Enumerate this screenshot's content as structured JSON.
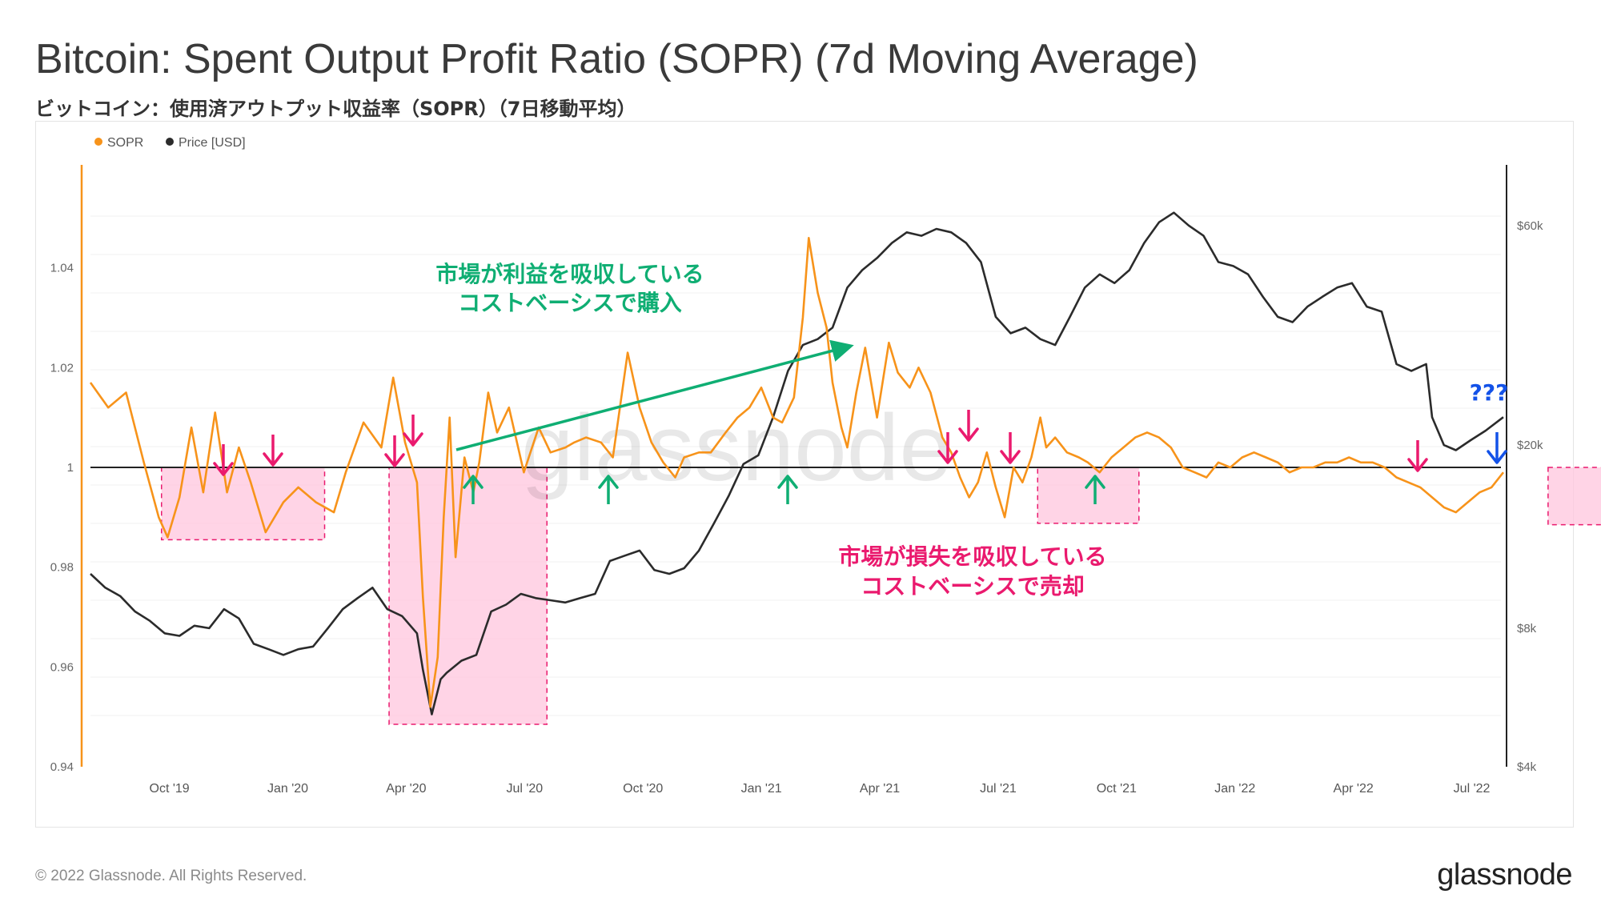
{
  "title": "Bitcoin: Spent Output Profit Ratio (SOPR) (7d Moving Average)",
  "subtitle": "ビットコイン：使用済アウトプット収益率（SOPR）（7日移動平均）",
  "footer": "© 2022 Glassnode. All Rights Reserved.",
  "brand": "glassnode",
  "watermark": "glassnode",
  "colors": {
    "sopr": "#f7931a",
    "price": "#2b2b2b",
    "green": "#0fae73",
    "pink": "#ea1a6e",
    "blue": "#1352e8",
    "shade": "#ffc6dd"
  },
  "chart_data": {
    "type": "line",
    "legend": [
      {
        "name": "SOPR",
        "color": "#f7931a"
      },
      {
        "name": "Price [USD]",
        "color": "#2b2b2b"
      }
    ],
    "x_ticks": [
      "Oct '19",
      "Jan '20",
      "Apr '20",
      "Jul '20",
      "Oct '20",
      "Jan '21",
      "Apr '21",
      "Jul '21",
      "Oct '21",
      "Jan '22",
      "Apr '22",
      "Jul '22"
    ],
    "x_range_months": [
      0,
      35.8
    ],
    "y_left": {
      "label": "SOPR",
      "range": [
        0.94,
        1.06
      ],
      "ticks": [
        "1.04",
        "1.02",
        "1",
        "0.98",
        "0.96",
        "0.94"
      ]
    },
    "y_right": {
      "label": "Price [USD]",
      "scale": "log",
      "range": [
        4000,
        80000
      ],
      "ticks": [
        {
          "label": "$60k",
          "value": 60000
        },
        {
          "label": "$20k",
          "value": 20000
        },
        {
          "label": "$8k",
          "value": 8000
        },
        {
          "label": "$4k",
          "value": 4000
        }
      ]
    },
    "baseline": 1.0,
    "series": [
      {
        "name": "SOPR",
        "axis": "left",
        "points": [
          [
            0.0,
            1.017
          ],
          [
            0.6,
            1.012
          ],
          [
            1.2,
            1.015
          ],
          [
            1.8,
            1.001
          ],
          [
            2.3,
            0.99
          ],
          [
            2.6,
            0.986
          ],
          [
            3.0,
            0.994
          ],
          [
            3.4,
            1.008
          ],
          [
            3.8,
            0.995
          ],
          [
            4.2,
            1.011
          ],
          [
            4.6,
            0.995
          ],
          [
            5.0,
            1.004
          ],
          [
            5.4,
            0.997
          ],
          [
            5.9,
            0.987
          ],
          [
            6.5,
            0.993
          ],
          [
            7.0,
            0.996
          ],
          [
            7.6,
            0.993
          ],
          [
            8.2,
            0.991
          ],
          [
            8.6,
            0.999
          ],
          [
            9.2,
            1.009
          ],
          [
            9.8,
            1.004
          ],
          [
            10.2,
            1.018
          ],
          [
            10.6,
            1.005
          ],
          [
            11.0,
            0.997
          ],
          [
            11.2,
            0.974
          ],
          [
            11.45,
            0.952
          ],
          [
            11.7,
            0.962
          ],
          [
            11.9,
            0.99
          ],
          [
            12.1,
            1.01
          ],
          [
            12.3,
            0.982
          ],
          [
            12.6,
            1.002
          ],
          [
            12.9,
            0.995
          ],
          [
            13.1,
            1.001
          ],
          [
            13.4,
            1.015
          ],
          [
            13.7,
            1.007
          ],
          [
            14.1,
            1.012
          ],
          [
            14.6,
            0.999
          ],
          [
            15.1,
            1.008
          ],
          [
            15.5,
            1.003
          ],
          [
            16.0,
            1.004
          ],
          [
            16.3,
            1.005
          ],
          [
            16.7,
            1.006
          ],
          [
            17.2,
            1.005
          ],
          [
            17.6,
            1.002
          ],
          [
            18.1,
            1.023
          ],
          [
            18.5,
            1.012
          ],
          [
            18.9,
            1.005
          ],
          [
            19.3,
            1.001
          ],
          [
            19.7,
            0.998
          ],
          [
            20.0,
            1.002
          ],
          [
            20.5,
            1.003
          ],
          [
            20.9,
            1.003
          ],
          [
            21.4,
            1.007
          ],
          [
            21.8,
            1.01
          ],
          [
            22.2,
            1.012
          ],
          [
            22.6,
            1.016
          ],
          [
            23.0,
            1.01
          ],
          [
            23.3,
            1.009
          ],
          [
            23.7,
            1.014
          ],
          [
            24.0,
            1.03
          ],
          [
            24.2,
            1.046
          ],
          [
            24.5,
            1.035
          ],
          [
            24.8,
            1.028
          ],
          [
            25.0,
            1.017
          ],
          [
            25.3,
            1.008
          ],
          [
            25.5,
            1.004
          ],
          [
            25.8,
            1.015
          ],
          [
            26.1,
            1.024
          ],
          [
            26.5,
            1.01
          ],
          [
            26.9,
            1.025
          ],
          [
            27.2,
            1.019
          ],
          [
            27.6,
            1.016
          ],
          [
            27.9,
            1.02
          ],
          [
            28.3,
            1.015
          ],
          [
            28.7,
            1.006
          ],
          [
            29.0,
            1.003
          ],
          [
            29.3,
            0.998
          ],
          [
            29.6,
            0.994
          ],
          [
            29.9,
            0.997
          ],
          [
            30.2,
            1.003
          ],
          [
            30.5,
            0.996
          ],
          [
            30.8,
            0.99
          ],
          [
            31.1,
            1.0
          ],
          [
            31.4,
            0.997
          ],
          [
            31.7,
            1.002
          ],
          [
            32.0,
            1.01
          ],
          [
            32.2,
            1.004
          ],
          [
            32.5,
            1.006
          ],
          [
            32.9,
            1.003
          ],
          [
            33.3,
            1.002
          ],
          [
            33.6,
            1.001
          ],
          [
            34.0,
            0.999
          ],
          [
            34.4,
            1.002
          ],
          [
            34.8,
            1.004
          ],
          [
            35.2,
            1.006
          ],
          [
            35.6,
            1.007
          ],
          [
            36.0,
            1.006
          ],
          [
            36.4,
            1.004
          ],
          [
            36.8,
            1.0
          ],
          [
            37.2,
            0.999
          ],
          [
            37.6,
            0.998
          ],
          [
            38.0,
            1.001
          ],
          [
            38.4,
            1.0
          ],
          [
            38.8,
            1.002
          ],
          [
            39.2,
            1.003
          ],
          [
            39.6,
            1.002
          ],
          [
            40.0,
            1.001
          ],
          [
            40.4,
            0.999
          ],
          [
            40.8,
            1.0
          ],
          [
            41.2,
            1.0
          ],
          [
            41.6,
            1.001
          ],
          [
            42.0,
            1.001
          ],
          [
            42.4,
            1.002
          ],
          [
            42.8,
            1.001
          ],
          [
            43.2,
            1.001
          ],
          [
            43.6,
            1.0
          ],
          [
            44.0,
            0.998
          ],
          [
            44.4,
            0.997
          ],
          [
            44.8,
            0.996
          ],
          [
            45.2,
            0.994
          ],
          [
            45.6,
            0.992
          ],
          [
            46.0,
            0.991
          ],
          [
            46.4,
            0.993
          ],
          [
            46.8,
            0.995
          ],
          [
            47.2,
            0.996
          ],
          [
            47.6,
            0.999
          ]
        ]
      },
      {
        "name": "Price [USD]",
        "axis": "right",
        "points": [
          [
            0.0,
            10500
          ],
          [
            0.5,
            9800
          ],
          [
            1.0,
            9400
          ],
          [
            1.5,
            8700
          ],
          [
            2.0,
            8300
          ],
          [
            2.5,
            7800
          ],
          [
            3.0,
            7700
          ],
          [
            3.5,
            8100
          ],
          [
            4.0,
            8000
          ],
          [
            4.5,
            8800
          ],
          [
            5.0,
            8400
          ],
          [
            5.5,
            7400
          ],
          [
            6.0,
            7200
          ],
          [
            6.5,
            7000
          ],
          [
            7.0,
            7200
          ],
          [
            7.5,
            7300
          ],
          [
            8.0,
            8000
          ],
          [
            8.5,
            8800
          ],
          [
            9.0,
            9300
          ],
          [
            9.5,
            9800
          ],
          [
            10.0,
            8800
          ],
          [
            10.5,
            8500
          ],
          [
            11.0,
            7800
          ],
          [
            11.2,
            6500
          ],
          [
            11.5,
            5200
          ],
          [
            11.8,
            6200
          ],
          [
            12.0,
            6400
          ],
          [
            12.5,
            6800
          ],
          [
            13.0,
            7000
          ],
          [
            13.5,
            8700
          ],
          [
            14.0,
            9000
          ],
          [
            14.5,
            9500
          ],
          [
            15.0,
            9300
          ],
          [
            15.5,
            9200
          ],
          [
            16.0,
            9100
          ],
          [
            16.5,
            9300
          ],
          [
            17.0,
            9500
          ],
          [
            17.5,
            11200
          ],
          [
            18.0,
            11500
          ],
          [
            18.5,
            11800
          ],
          [
            19.0,
            10700
          ],
          [
            19.5,
            10500
          ],
          [
            20.0,
            10800
          ],
          [
            20.5,
            11800
          ],
          [
            21.0,
            13500
          ],
          [
            21.5,
            15500
          ],
          [
            22.0,
            18200
          ],
          [
            22.5,
            19000
          ],
          [
            23.0,
            23000
          ],
          [
            23.5,
            29000
          ],
          [
            24.0,
            33000
          ],
          [
            24.5,
            34000
          ],
          [
            25.0,
            36000
          ],
          [
            25.5,
            44000
          ],
          [
            26.0,
            48000
          ],
          [
            26.5,
            51000
          ],
          [
            27.0,
            55000
          ],
          [
            27.5,
            58000
          ],
          [
            28.0,
            57000
          ],
          [
            28.5,
            59000
          ],
          [
            29.0,
            58000
          ],
          [
            29.5,
            55000
          ],
          [
            30.0,
            50000
          ],
          [
            30.5,
            38000
          ],
          [
            31.0,
            35000
          ],
          [
            31.5,
            36000
          ],
          [
            32.0,
            34000
          ],
          [
            32.5,
            33000
          ],
          [
            33.0,
            38000
          ],
          [
            33.5,
            44000
          ],
          [
            34.0,
            47000
          ],
          [
            34.5,
            45000
          ],
          [
            35.0,
            48000
          ],
          [
            35.5,
            55000
          ],
          [
            36.0,
            61000
          ],
          [
            36.5,
            64000
          ],
          [
            37.0,
            60000
          ],
          [
            37.5,
            57000
          ],
          [
            38.0,
            50000
          ],
          [
            38.5,
            49000
          ],
          [
            39.0,
            47000
          ],
          [
            39.5,
            42000
          ],
          [
            40.0,
            38000
          ],
          [
            40.5,
            37000
          ],
          [
            41.0,
            40000
          ],
          [
            41.5,
            42000
          ],
          [
            42.0,
            44000
          ],
          [
            42.5,
            45000
          ],
          [
            43.0,
            40000
          ],
          [
            43.5,
            39000
          ],
          [
            44.0,
            30000
          ],
          [
            44.5,
            29000
          ],
          [
            45.0,
            30000
          ],
          [
            45.2,
            23000
          ],
          [
            45.6,
            20000
          ],
          [
            46.0,
            19500
          ],
          [
            46.5,
            20500
          ],
          [
            47.0,
            21500
          ],
          [
            47.6,
            23000
          ]
        ]
      }
    ],
    "annotations": [
      {
        "lines": [
          "市場が利益を吸収している",
          "コストベーシスで購入"
        ],
        "color": "green"
      },
      {
        "lines": [
          "市場が損失を吸収している",
          "コストベーシスで売却"
        ],
        "color": "pink"
      },
      {
        "text": "???",
        "color": "blue"
      }
    ]
  }
}
